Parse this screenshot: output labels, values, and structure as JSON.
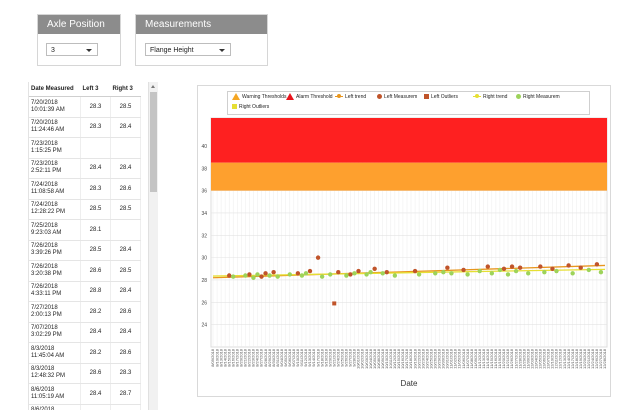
{
  "axle_position": {
    "title": "Axle Position",
    "selected": "3"
  },
  "measurements": {
    "title": "Measurements",
    "selected": "Flange Height"
  },
  "table": {
    "headers": [
      "Date Measured",
      "Left 3",
      "Right 3"
    ],
    "rows": [
      {
        "date": "7/20/2018 10:01:39 AM",
        "left": "28.3",
        "right": "28.5"
      },
      {
        "date": "7/20/2018 11:24:46 AM",
        "left": "28.3",
        "right": "28.4"
      },
      {
        "date": "7/23/2018 1:15:25 PM",
        "left": "",
        "right": ""
      },
      {
        "date": "7/23/2018 2:52:11 PM",
        "left": "28.4",
        "right": "28.4"
      },
      {
        "date": "7/24/2018 11:08:58 AM",
        "left": "28.3",
        "right": "28.6"
      },
      {
        "date": "7/24/2018 12:28:22 PM",
        "left": "28.5",
        "right": "28.5"
      },
      {
        "date": "7/25/2018 9:23:03 AM",
        "left": "28.1",
        "right": ""
      },
      {
        "date": "7/26/2018 3:39:26 PM",
        "left": "28.5",
        "right": "28.4"
      },
      {
        "date": "7/26/2018 3:20:38 PM",
        "left": "28.6",
        "right": "28.5"
      },
      {
        "date": "7/26/2018 4:33:11 PM",
        "left": "28.8",
        "right": "28.4"
      },
      {
        "date": "7/27/2018 2:00:13 PM",
        "left": "28.2",
        "right": "28.6"
      },
      {
        "date": "7/07/2018 3:02:29 PM",
        "left": "28.4",
        "right": "28.4"
      },
      {
        "date": "8/3/2018 11:45:04 AM",
        "left": "28.2",
        "right": "28.6"
      },
      {
        "date": "8/3/2018 12:48:32 PM",
        "left": "28.6",
        "right": "28.3"
      },
      {
        "date": "8/6/2018 11:05:19 AM",
        "left": "28.4",
        "right": "28.7"
      },
      {
        "date": "8/6/2018 12:37:57 PM",
        "left": "28.5",
        "right": "28.6"
      }
    ]
  },
  "legend": [
    {
      "label": "Warning Thresholds",
      "symbol": "triangle",
      "color": "#f5a623"
    },
    {
      "label": "Alarm Threshold",
      "symbol": "triangle",
      "color": "#e8141c"
    },
    {
      "label": "Left trend",
      "symbol": "line-dot",
      "color": "#e8961e"
    },
    {
      "label": "Left Measurem",
      "symbol": "dot",
      "color": "#c0542a"
    },
    {
      "label": "Left Outliers",
      "symbol": "square",
      "color": "#c0542a"
    },
    {
      "label": "Right trend",
      "symbol": "line-dot",
      "color": "#e6df33"
    },
    {
      "label": "Right Measurem",
      "symbol": "dot",
      "color": "#9dd35a"
    },
    {
      "label": "Right Outliers",
      "symbol": "square",
      "color": "#e6df33"
    }
  ],
  "chart_data": {
    "type": "scatter",
    "xlabel": "Date",
    "ylabel": "",
    "ylim": [
      22,
      42.5
    ],
    "yticks": [
      24,
      26,
      28,
      30,
      32,
      34,
      36,
      38,
      40
    ],
    "grid": true,
    "legend_position": "top",
    "bands": [
      {
        "name": "Alarm Threshold",
        "from": 38.5,
        "to": 42.5,
        "color": "#fe2020"
      },
      {
        "name": "Warning Thresholds",
        "from": 36.0,
        "to": 38.5,
        "color": "#fea02e"
      }
    ],
    "x_dates": [
      "8/09/2018",
      "8/10/2018",
      "8/13/2018",
      "8/14/2018",
      "8/15/2018",
      "8/16/2018",
      "8/17/2018",
      "8/20/2018",
      "8/21/2018",
      "8/22/2018",
      "8/23/2018",
      "8/24/2018",
      "8/27/2018",
      "8/28/2018",
      "8/29/2018",
      "8/30/2018",
      "8/31/2018",
      "9/04/2018",
      "9/05/2018",
      "9/06/2018",
      "9/07/2018",
      "9/10/2018",
      "9/11/2018",
      "9/12/2018",
      "9/13/2018",
      "9/14/2018",
      "9/17/2018",
      "9/18/2018",
      "9/19/2018",
      "9/20/2018",
      "9/21/2018",
      "9/24/2018",
      "9/25/2018",
      "9/26/2018",
      "9/27/2018",
      "9/28/2018",
      "10/01/2018",
      "10/02/2018",
      "10/03/2018",
      "10/04/2018",
      "10/05/2018",
      "10/08/2018",
      "10/09/2018",
      "10/10/2018",
      "10/11/2018",
      "10/12/2018",
      "10/15/2018",
      "10/16/2018",
      "10/17/2018",
      "10/18/2018",
      "10/19/2018",
      "10/22/2018",
      "10/23/2018",
      "10/24/2018",
      "10/25/2018",
      "10/26/2018",
      "10/29/2018",
      "10/30/2018",
      "10/31/2018",
      "11/01/2018",
      "11/02/2018",
      "11/05/2018",
      "11/06/2018",
      "11/07/2018",
      "11/08/2018",
      "11/09/2018",
      "11/12/2018",
      "11/13/2018",
      "11/14/2018",
      "11/15/2018",
      "11/16/2018",
      "11/19/2018",
      "11/20/2018",
      "11/21/2018",
      "11/26/2018",
      "11/27/2018",
      "11/28/2018",
      "11/29/2018",
      "11/30/2018",
      "12/03/2018",
      "12/04/2018",
      "12/05/2018",
      "12/06/2018",
      "12/07/2018",
      "12/10/2018",
      "12/11/2018",
      "12/12/2018",
      "12/13/2018",
      "12/14/2018",
      "12/17/2018",
      "12/18/2018",
      "12/19/2018",
      "12/20/2018",
      "12/21/2018",
      "12/24/2018",
      "12/26/2018",
      "12/27/2018",
      "12/28/2018"
    ],
    "series": [
      {
        "name": "Left trend",
        "kind": "line",
        "color": "#e8961e",
        "points": [
          [
            0,
            28.2
          ],
          [
            97,
            29.3
          ]
        ]
      },
      {
        "name": "Right trend",
        "kind": "line",
        "color": "#e6df33",
        "points": [
          [
            0,
            28.35
          ],
          [
            97,
            28.95
          ]
        ]
      },
      {
        "name": "Left Measurem",
        "kind": "dot",
        "color": "#c0542a",
        "points": [
          [
            4,
            28.4
          ],
          [
            9,
            28.5
          ],
          [
            12,
            28.3
          ],
          [
            13,
            28.6
          ],
          [
            15,
            28.7
          ],
          [
            21,
            28.6
          ],
          [
            24,
            28.8
          ],
          [
            26,
            30.0
          ],
          [
            31,
            28.7
          ],
          [
            34,
            28.5
          ],
          [
            36,
            28.8
          ],
          [
            40,
            29.0
          ],
          [
            43,
            28.7
          ],
          [
            50,
            28.8
          ],
          [
            58,
            29.1
          ],
          [
            62,
            28.9
          ],
          [
            68,
            29.2
          ],
          [
            72,
            29.0
          ],
          [
            74,
            29.2
          ],
          [
            76,
            29.1
          ],
          [
            81,
            29.2
          ],
          [
            84,
            29.0
          ],
          [
            88,
            29.3
          ],
          [
            91,
            29.1
          ],
          [
            95,
            29.4
          ]
        ]
      },
      {
        "name": "Left Outliers",
        "kind": "square",
        "color": "#c0542a",
        "points": [
          [
            30,
            25.9
          ]
        ]
      },
      {
        "name": "Right Measurem",
        "kind": "dot",
        "color": "#9dd35a",
        "points": [
          [
            5,
            28.3
          ],
          [
            8,
            28.4
          ],
          [
            10,
            28.2
          ],
          [
            11,
            28.5
          ],
          [
            14,
            28.4
          ],
          [
            16,
            28.3
          ],
          [
            19,
            28.5
          ],
          [
            22,
            28.4
          ],
          [
            23,
            28.6
          ],
          [
            27,
            28.3
          ],
          [
            29,
            28.5
          ],
          [
            33,
            28.4
          ],
          [
            35,
            28.6
          ],
          [
            38,
            28.5
          ],
          [
            39,
            28.7
          ],
          [
            42,
            28.6
          ],
          [
            45,
            28.4
          ],
          [
            51,
            28.5
          ],
          [
            55,
            28.6
          ],
          [
            57,
            28.7
          ],
          [
            59,
            28.6
          ],
          [
            63,
            28.5
          ],
          [
            66,
            28.8
          ],
          [
            69,
            28.6
          ],
          [
            71,
            28.9
          ],
          [
            73,
            28.5
          ],
          [
            75,
            28.8
          ],
          [
            78,
            28.6
          ],
          [
            82,
            28.7
          ],
          [
            85,
            28.8
          ],
          [
            89,
            28.6
          ],
          [
            93,
            28.9
          ],
          [
            96,
            28.7
          ]
        ]
      }
    ]
  }
}
